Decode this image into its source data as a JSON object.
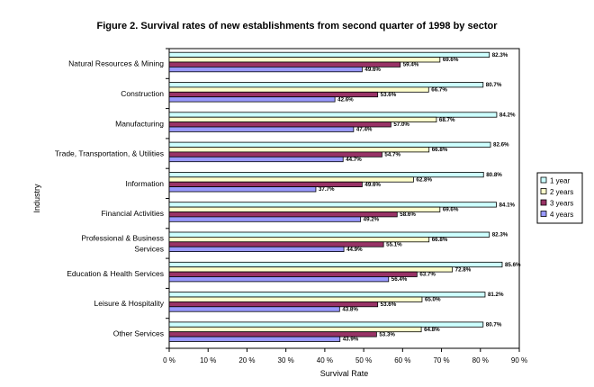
{
  "chart_data": {
    "type": "bar",
    "orientation": "horizontal",
    "title": "Figure 2. Survival rates of new establishments from second quarter of 1998 by sector",
    "xlabel": "Survival Rate",
    "ylabel": "Industry",
    "xlim": [
      0,
      90
    ],
    "x_ticks": [
      "0 %",
      "10 %",
      "20 %",
      "30 %",
      "40 %",
      "50 %",
      "60 %",
      "70 %",
      "80 %",
      "90 %"
    ],
    "grid": false,
    "legend_position": "right",
    "categories": [
      [
        "Natural Resources & Mining"
      ],
      [
        "Construction"
      ],
      [
        "Manufacturing"
      ],
      [
        "Trade, Transportation, & Utilities"
      ],
      [
        "Information"
      ],
      [
        "Financial Activities"
      ],
      [
        "Professional & Business",
        "Services"
      ],
      [
        "Education & Health Services"
      ],
      [
        "Leisure & Hospitality"
      ],
      [
        "Other Services"
      ]
    ],
    "series": [
      {
        "name": "1 year",
        "color": "#ccffff",
        "values": [
          82.3,
          80.7,
          84.2,
          82.6,
          80.8,
          84.1,
          82.3,
          85.6,
          81.2,
          80.7
        ],
        "labels": [
          "82.3%",
          "80.7%",
          "84.2%",
          "82.6%",
          "80.8%",
          "84.1%",
          "82.3%",
          "85.6%",
          "81.2%",
          "80.7%"
        ]
      },
      {
        "name": "2 years",
        "color": "#ffffcc",
        "values": [
          69.6,
          66.7,
          68.7,
          66.8,
          62.8,
          69.6,
          66.8,
          72.8,
          65.0,
          64.8
        ],
        "labels": [
          "69.6%",
          "66.7%",
          "68.7%",
          "66.8%",
          "62.8%",
          "69.6%",
          "66.8%",
          "72.8%",
          "65.0%",
          "64.8%"
        ]
      },
      {
        "name": "3 years",
        "color": "#993366",
        "values": [
          59.4,
          53.6,
          57.0,
          54.7,
          49.6,
          58.6,
          55.1,
          63.7,
          53.6,
          53.3
        ],
        "labels": [
          "59.4%",
          "53.6%",
          "57.0%",
          "54.7%",
          "49.6%",
          "58.6%",
          "55.1%",
          "63.7%",
          "53.6%",
          "53.3%"
        ]
      },
      {
        "name": "4 years",
        "color": "#9999ff",
        "values": [
          49.6,
          42.6,
          47.4,
          44.7,
          37.7,
          49.2,
          44.9,
          56.4,
          43.8,
          43.9
        ],
        "labels": [
          "49.6%",
          "42.6%",
          "47.4%",
          "44.7%",
          "37.7%",
          "49.2%",
          "44.9%",
          "56.4%",
          "43.8%",
          "43.9%"
        ]
      }
    ]
  }
}
